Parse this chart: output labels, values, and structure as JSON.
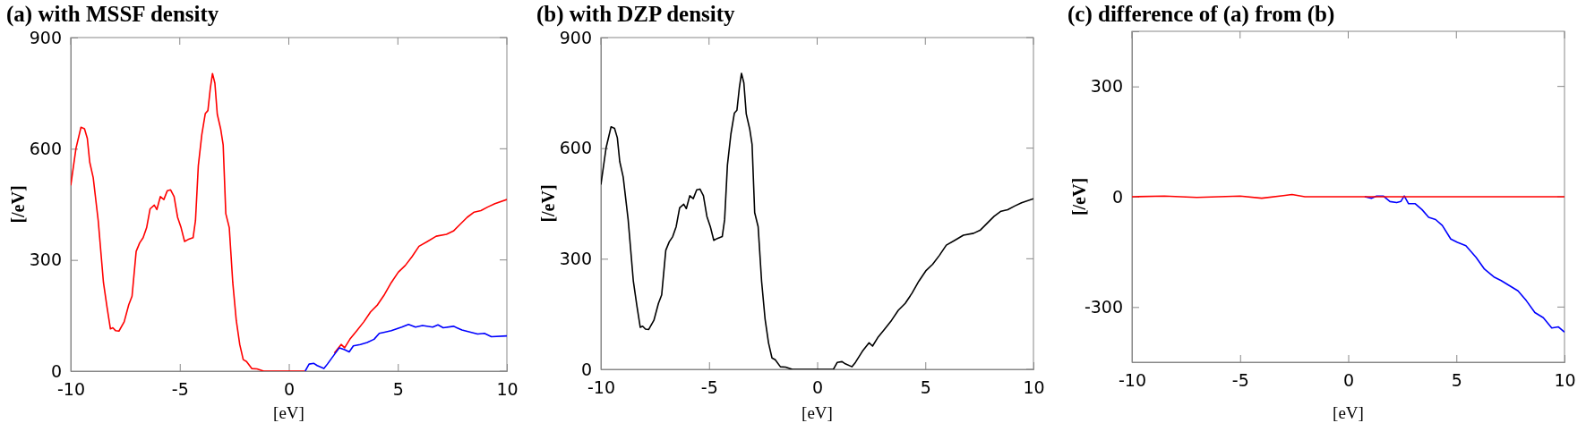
{
  "chart_data": [
    {
      "type": "line",
      "title": "(a) with MSSF density",
      "xlabel": "[eV]",
      "ylabel": "[/eV]",
      "xlim": [
        -10,
        10
      ],
      "xticks": [
        -10,
        -5,
        0,
        5,
        10
      ],
      "ylim": [
        0,
        900
      ],
      "yticks": [
        0,
        300,
        600,
        900
      ],
      "grid": false,
      "marker": "none",
      "line_style": "solid",
      "series": [
        {
          "color": "#ff0000",
          "x": [
            -10,
            -9.76,
            -9.53,
            -9.37,
            -9.24,
            -9.13,
            -8.97,
            -8.74,
            -8.5,
            -8.34,
            -8.18,
            -8.07,
            -7.94,
            -7.79,
            -7.55,
            -7.34,
            -7.19,
            -7.0,
            -6.84,
            -6.68,
            -6.52,
            -6.36,
            -6.17,
            -6.05,
            -5.89,
            -5.73,
            -5.57,
            -5.42,
            -5.26,
            -5.1,
            -4.94,
            -4.78,
            -4.62,
            -4.39,
            -4.28,
            -4.15,
            -3.99,
            -3.83,
            -3.71,
            -3.6,
            -3.5,
            -3.39,
            -3.28,
            -3.12,
            -3.01,
            -2.89,
            -2.73,
            -2.57,
            -2.41,
            -2.25,
            -2.09,
            -1.94,
            -1.7,
            -1.46,
            -1.15,
            -0.67,
            0.75,
            0.93,
            1.15,
            1.3,
            1.61,
            1.77,
            2.09,
            2.4,
            2.56,
            2.8,
            3.12,
            3.44,
            3.75,
            4.07,
            4.39,
            4.7,
            5.02,
            5.34,
            5.65,
            5.97,
            6.36,
            6.76,
            7.23,
            7.55,
            7.87,
            8.18,
            8.5,
            8.81,
            9.13,
            9.45,
            10
          ],
          "values": [
            501,
            601,
            658,
            654,
            628,
            564,
            522,
            406,
            239,
            174,
            114,
            117,
            109,
            108,
            133,
            179,
            202,
            323,
            346,
            360,
            387,
            438,
            448,
            436,
            471,
            463,
            487,
            489,
            471,
            415,
            387,
            350,
            355,
            360,
            406,
            554,
            638,
            695,
            703,
            763,
            803,
            777,
            693,
            652,
            610,
            425,
            387,
            239,
            137,
            72,
            31,
            26,
            7,
            6,
            0,
            0,
            0,
            null,
            null,
            null,
            null,
            null,
            49,
            72,
            63,
            86,
            109,
            133,
            160,
            179,
            207,
            239,
            267,
            285,
            309,
            337,
            350,
            364,
            369,
            378,
            397,
            415,
            429,
            433,
            443,
            452,
            463
          ]
        },
        {
          "color": "#0000ff",
          "x": [
            0.75,
            0.93,
            1.15,
            1.3,
            1.61,
            1.77,
            2.09,
            2.32,
            2.56,
            2.77,
            2.96,
            3.28,
            3.59,
            3.91,
            4.15,
            4.39,
            4.7,
            5.18,
            5.49,
            5.81,
            6.13,
            6.6,
            6.84,
            7.08,
            7.55,
            7.94,
            8.34,
            8.66,
            8.97,
            9.29,
            10
          ],
          "values": [
            0,
            19,
            21,
            15,
            7,
            19,
            45,
            63,
            58,
            52,
            68,
            72,
            77,
            86,
            102,
            105,
            109,
            119,
            126,
            119,
            123,
            119,
            125,
            117,
            121,
            111,
            105,
            100,
            102,
            93,
            95
          ]
        }
      ]
    },
    {
      "type": "line",
      "title": "(b) with DZP density",
      "xlabel": "[eV]",
      "ylabel": "[/eV]",
      "xlim": [
        -10,
        10
      ],
      "xticks": [
        -10,
        -5,
        0,
        5,
        10
      ],
      "ylim": [
        0,
        900
      ],
      "yticks": [
        0,
        300,
        600,
        900
      ],
      "grid": false,
      "marker": "none",
      "line_style": "solid",
      "series": [
        {
          "color": "#000000",
          "x": [
            -10,
            -9.76,
            -9.53,
            -9.37,
            -9.24,
            -9.13,
            -8.97,
            -8.74,
            -8.5,
            -8.34,
            -8.18,
            -8.07,
            -7.94,
            -7.79,
            -7.55,
            -7.34,
            -7.19,
            -7.0,
            -6.84,
            -6.68,
            -6.52,
            -6.36,
            -6.17,
            -6.05,
            -5.89,
            -5.73,
            -5.57,
            -5.42,
            -5.26,
            -5.1,
            -4.94,
            -4.78,
            -4.62,
            -4.39,
            -4.28,
            -4.15,
            -3.99,
            -3.83,
            -3.71,
            -3.6,
            -3.5,
            -3.39,
            -3.28,
            -3.12,
            -3.01,
            -2.89,
            -2.73,
            -2.57,
            -2.41,
            -2.25,
            -2.09,
            -1.94,
            -1.7,
            -1.46,
            -1.15,
            -0.67,
            0.75,
            0.93,
            1.15,
            1.3,
            1.61,
            1.77,
            2.09,
            2.4,
            2.56,
            2.8,
            3.12,
            3.44,
            3.75,
            4.07,
            4.39,
            4.7,
            5.02,
            5.34,
            5.65,
            5.97,
            6.36,
            6.76,
            7.23,
            7.55,
            7.87,
            8.18,
            8.5,
            8.81,
            9.13,
            9.45,
            10
          ],
          "values": [
            501,
            601,
            658,
            654,
            628,
            564,
            522,
            406,
            239,
            174,
            114,
            117,
            109,
            108,
            133,
            179,
            202,
            323,
            346,
            360,
            387,
            438,
            448,
            436,
            471,
            463,
            487,
            489,
            471,
            415,
            387,
            350,
            355,
            360,
            406,
            554,
            638,
            695,
            703,
            763,
            803,
            777,
            693,
            652,
            610,
            425,
            387,
            239,
            137,
            72,
            31,
            26,
            7,
            6,
            0,
            0,
            0,
            19,
            21,
            15,
            7,
            19,
            49,
            72,
            63,
            86,
            109,
            133,
            160,
            179,
            207,
            239,
            267,
            285,
            309,
            337,
            350,
            364,
            369,
            378,
            397,
            415,
            429,
            433,
            443,
            452,
            463
          ]
        }
      ]
    },
    {
      "type": "line",
      "title": "(c) difference of (a) from (b)",
      "xlabel": "[eV]",
      "ylabel": "[/eV]",
      "xlim": [
        -10,
        10
      ],
      "xticks": [
        -10,
        -5,
        0,
        5,
        10
      ],
      "ylim": [
        -450,
        450
      ],
      "yticks": [
        -300,
        0,
        300
      ],
      "grid": false,
      "marker": "none",
      "line_style": "solid",
      "series": [
        {
          "color": "#0000ff",
          "x": [
            0.76,
            1.07,
            1.31,
            1.62,
            1.93,
            2.24,
            2.43,
            2.59,
            2.79,
            3.1,
            3.41,
            3.72,
            4.04,
            4.35,
            4.74,
            5.05,
            5.44,
            5.91,
            6.3,
            6.76,
            7.07,
            7.46,
            7.85,
            8.24,
            8.63,
            9.02,
            9.41,
            9.72,
            10
          ],
          "values": [
            0,
            -4,
            2,
            2,
            -13,
            -16,
            -13,
            2,
            -19,
            -19,
            -35,
            -56,
            -62,
            -78,
            -115,
            -124,
            -133,
            -165,
            -197,
            -219,
            -228,
            -242,
            -256,
            -283,
            -315,
            -329,
            -357,
            -354,
            -368
          ]
        },
        {
          "color": "#ff0000",
          "x": [
            -10,
            -8.5,
            -7,
            -5,
            -4,
            -3,
            -2.6,
            -2,
            10
          ],
          "values": [
            0,
            2,
            -2,
            2,
            -4,
            3,
            6,
            0,
            0
          ]
        }
      ]
    }
  ]
}
